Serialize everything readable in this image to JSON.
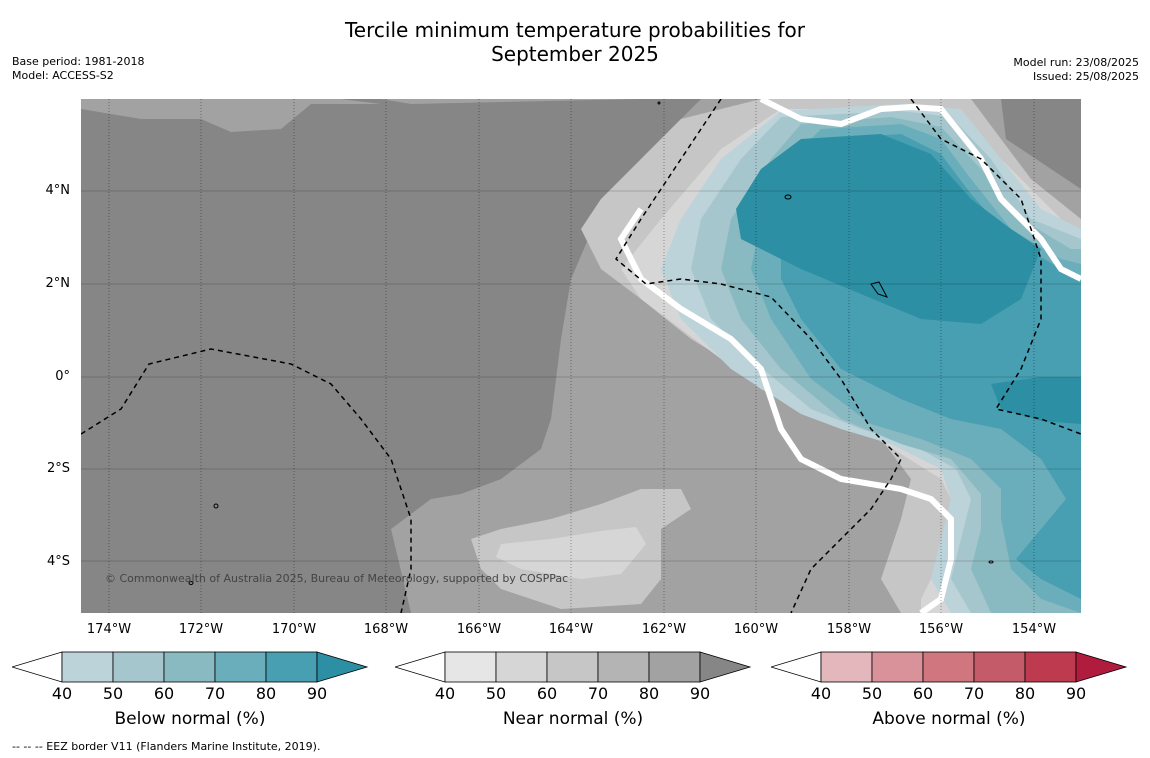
{
  "header": {
    "title_line1": "Tercile minimum temperature probabilities for",
    "title_line2": "September 2025",
    "base_period": "Base period: 1981-2018",
    "model": "Model: ACCESS-S2",
    "model_run": "Model run: 23/08/2025",
    "issued": "Issued: 25/08/2025"
  },
  "map": {
    "longitude_labels": [
      "174°W",
      "172°W",
      "170°W",
      "168°W",
      "166°W",
      "164°W",
      "162°W",
      "160°W",
      "158°W",
      "156°W",
      "154°W"
    ],
    "latitude_labels": [
      "4°N",
      "2°N",
      "0°",
      "2°S",
      "4°S"
    ],
    "copyright": "© Commonwealth of Australia 2025, Bureau of Meteorology, supported by COSPPac"
  },
  "colorbars": [
    {
      "name": "below",
      "label": "Below normal (%)",
      "ticks": [
        "40",
        "50",
        "60",
        "70",
        "80",
        "90"
      ],
      "colors": [
        "#ffffff",
        "#bcd3da",
        "#a5c6cc",
        "#8abac1",
        "#6baebb",
        "#479fb1",
        "#2c8fa4"
      ]
    },
    {
      "name": "near",
      "label": "Near normal (%)",
      "ticks": [
        "40",
        "50",
        "60",
        "70",
        "80",
        "90"
      ],
      "colors": [
        "#ffffff",
        "#e6e6e6",
        "#d6d6d6",
        "#c6c6c6",
        "#b4b4b4",
        "#a2a2a2",
        "#868686"
      ]
    },
    {
      "name": "above",
      "label": "Above normal (%)",
      "ticks": [
        "40",
        "50",
        "60",
        "70",
        "80",
        "90"
      ],
      "colors": [
        "#ffffff",
        "#e4b7bd",
        "#d99299",
        "#cf767f",
        "#c45b68",
        "#be3a4f",
        "#b01c3d"
      ]
    }
  ],
  "footnote": "--  --  -- EEZ border V11 (Flanders Marine Institute, 2019)."
}
